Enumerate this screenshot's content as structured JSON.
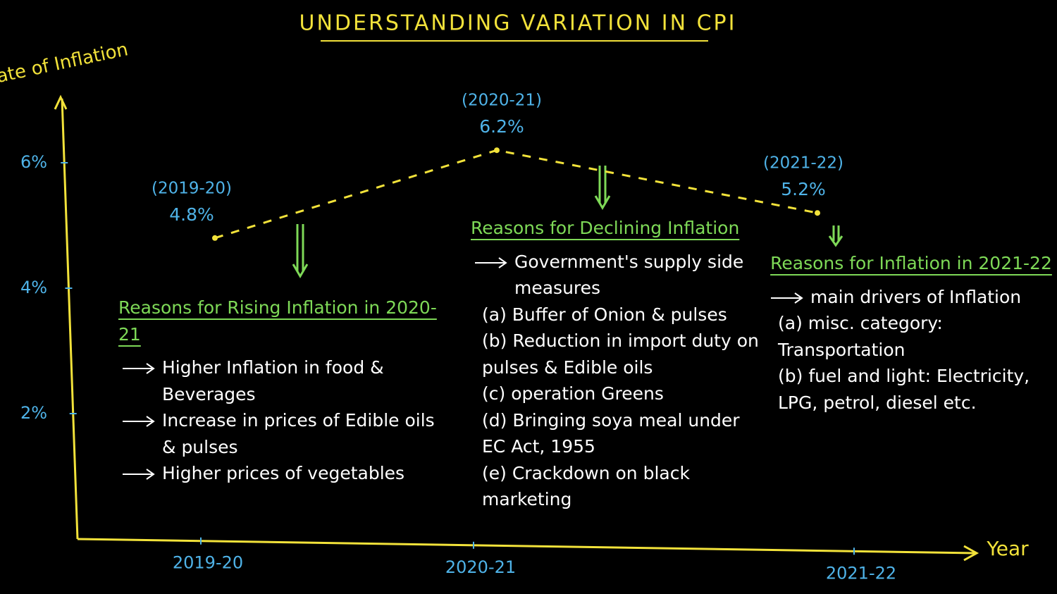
{
  "chart_data": {
    "type": "line",
    "title": "UNDERSTANDING VARIATION IN CPI",
    "y_label": "Rate of Inflation",
    "x_label": "Year",
    "categories": [
      "2019-20",
      "2020-21",
      "2021-22"
    ],
    "point_labels": [
      "(2019-20)",
      "(2020-21)",
      "(2021-22)"
    ],
    "values": [
      4.8,
      6.2,
      5.2
    ],
    "value_labels": [
      "4.8%",
      "6.2%",
      "5.2%"
    ],
    "color": "#f2e23a",
    "ylim": [
      0,
      7
    ],
    "yticks": [
      {
        "value": 2,
        "label": "2%"
      },
      {
        "value": 4,
        "label": "4%"
      },
      {
        "value": 6,
        "label": "6%"
      }
    ],
    "annotations": [
      {
        "heading": "Reasons for Rising Inflation in 2020-21",
        "items": [
          "Higher Inflation in food & Beverages",
          "Increase in prices of Edible oils & pulses",
          "Higher prices of vegetables"
        ]
      },
      {
        "heading": "Reasons for Declining Inflation",
        "items": [
          "Government's supply side measures"
        ],
        "subitems": [
          "(a) Buffer of Onion & pulses",
          "(b) Reduction in import duty on pulses & Edible oils",
          "(c) operation Greens",
          "(d) Bringing soya meal under EC Act, 1955",
          "(e) Crackdown on black marketing"
        ]
      },
      {
        "heading": "Reasons for Inflation in 2021-22",
        "items": [
          "main drivers of Inflation"
        ],
        "subitems": [
          "(a) misc. category: Transportation",
          "(b) fuel and light: Electricity, LPG, petrol, diesel etc."
        ]
      }
    ]
  }
}
